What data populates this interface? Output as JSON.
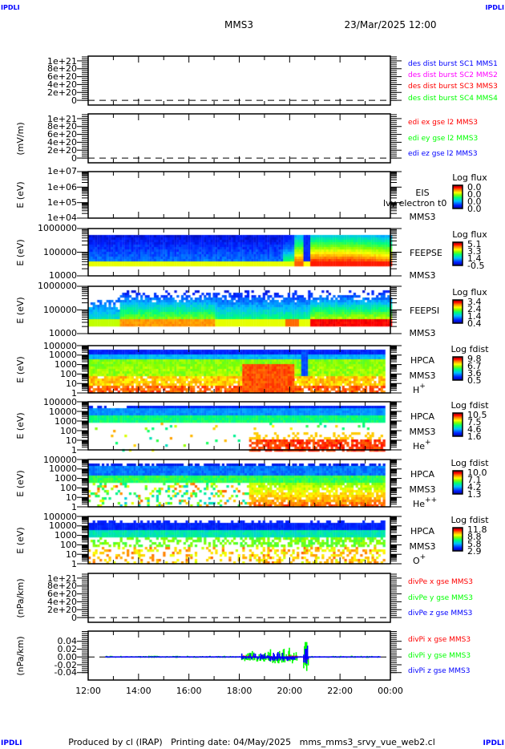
{
  "header": {
    "corner_left": "IPDLI",
    "corner_right": "IPDLI",
    "spacecraft": "MMS3",
    "datetime": "23/Mar/2025 12:00"
  },
  "footer": {
    "corner_left": "IPDLI",
    "corner_right": "IPDLI",
    "text": "Produced by cl (IRAP)   Printing date: 04/May/2025   mms_mms3_srvy_vue_web2.cl"
  },
  "colors": {
    "legend_blue": "#0000ff",
    "legend_magenta": "#ff00ff",
    "legend_red": "#ff0000",
    "legend_green": "#00ff00",
    "corner_text": "#0000ff"
  },
  "chart_data": {
    "type": "multi-panel time series / spectrogram",
    "x_axis": {
      "range": [
        "12:00",
        "00:00"
      ],
      "ticks": [
        "12:00",
        "14:00",
        "16:00",
        "18:00",
        "20:00",
        "22:00",
        "00:00"
      ]
    },
    "panels": [
      {
        "id": "des-dist",
        "type": "line",
        "ylabel": "",
        "yscale": "linear",
        "ylim": [
          -1.2e+20,
          1.12e+21
        ],
        "yticks": [
          {
            "v": 1e+21,
            "label": "1e+21"
          },
          {
            "v": 8e+20,
            "label": "8e+20"
          },
          {
            "v": 6e+20,
            "label": "6e+20"
          },
          {
            "v": 4e+20,
            "label": "4e+20"
          },
          {
            "v": 2e+20,
            "label": "2e+20"
          },
          {
            "v": 0,
            "label": "0"
          }
        ],
        "legend": [
          {
            "text": "des dist burst SC1 MMS1",
            "color": "#0000ff"
          },
          {
            "text": "des dist burst SC2 MMS2",
            "color": "#ff00ff"
          },
          {
            "text": "des dist burst SC3 MMS3",
            "color": "#ff0000"
          },
          {
            "text": "des dist burst SC4 MMS4",
            "color": "#00ff00"
          }
        ]
      },
      {
        "id": "edi",
        "type": "line",
        "ylabel": "(mV/m)",
        "yscale": "linear",
        "ylim": [
          -1.2e+20,
          1.12e+21
        ],
        "yticks": [
          {
            "v": 1e+21,
            "label": "1e+21"
          },
          {
            "v": 8e+20,
            "label": "8e+20"
          },
          {
            "v": 6e+20,
            "label": "6e+20"
          },
          {
            "v": 4e+20,
            "label": "4e+20"
          },
          {
            "v": 2e+20,
            "label": "2e+20"
          },
          {
            "v": 0,
            "label": "0"
          }
        ],
        "legend": [
          {
            "text": "edi ex gse l2 MMS3",
            "color": "#ff0000"
          },
          {
            "text": "edi ey gse l2 MMS3",
            "color": "#00ff00"
          },
          {
            "text": "edi ez gse l2 MMS3",
            "color": "#0000ff"
          }
        ]
      },
      {
        "id": "eis",
        "type": "heatmap",
        "ylabel": "E (eV)",
        "yscale": "log",
        "ylim": [
          10000.0,
          10000000.0
        ],
        "yticks": [
          {
            "v": 10000000.0,
            "label": "1e+07"
          },
          {
            "v": 1000000.0,
            "label": "1e+06"
          },
          {
            "v": 100000.0,
            "label": "1e+05"
          },
          {
            "v": 10000.0,
            "label": "1e+04"
          }
        ],
        "labels": [
          "EIS",
          "lvy electron t0",
          "MMS3"
        ],
        "colorbar": {
          "title": "Log flux",
          "ticks": [
            "0.0",
            "0.0",
            "0.0",
            "0.0"
          ]
        }
      },
      {
        "id": "feepse",
        "type": "heatmap",
        "ylabel": "E (eV)",
        "yscale": "log",
        "ylim": [
          10000.0,
          1000000.0
        ],
        "yticks": [
          {
            "v": 1000000.0,
            "label": "1000000"
          },
          {
            "v": 100000.0,
            "label": "100000"
          },
          {
            "v": 10000.0,
            "label": "10000"
          }
        ],
        "labels": [
          "FEEPSE",
          "MMS3"
        ],
        "colorbar": {
          "title": "Log flux",
          "ticks": [
            "5.1",
            "3.3",
            "1.4",
            "-0.5"
          ]
        }
      },
      {
        "id": "feepsi",
        "type": "heatmap",
        "ylabel": "E (eV)",
        "yscale": "log",
        "ylim": [
          10000.0,
          1000000.0
        ],
        "yticks": [
          {
            "v": 1000000.0,
            "label": "1000000"
          },
          {
            "v": 100000.0,
            "label": "100000"
          },
          {
            "v": 10000.0,
            "label": "10000"
          }
        ],
        "labels": [
          "FEEPSI",
          "MMS3"
        ],
        "colorbar": {
          "title": "Log flux",
          "ticks": [
            "3.4",
            "2.4",
            "1.4",
            "0.4"
          ]
        }
      },
      {
        "id": "hpca-h",
        "type": "heatmap",
        "ylabel": "E (eV)",
        "yscale": "log",
        "ylim": [
          1,
          100000.0
        ],
        "yticks": [
          {
            "v": 100000.0,
            "label": "100000"
          },
          {
            "v": 10000.0,
            "label": "10000"
          },
          {
            "v": 1000.0,
            "label": "1000"
          },
          {
            "v": 100,
            "label": "100"
          },
          {
            "v": 10,
            "label": "10"
          },
          {
            "v": 1,
            "label": "1"
          }
        ],
        "labels": [
          "HPCA",
          "MMS3"
        ],
        "species": {
          "base": "H",
          "sup": "+"
        },
        "colorbar": {
          "title": "Log fdist",
          "ticks": [
            "9.8",
            "6.7",
            "3.6",
            "0.5"
          ]
        }
      },
      {
        "id": "hpca-he1",
        "type": "heatmap",
        "ylabel": "E (eV)",
        "yscale": "log",
        "ylim": [
          1,
          100000.0
        ],
        "yticks": [
          {
            "v": 100000.0,
            "label": "100000"
          },
          {
            "v": 10000.0,
            "label": "10000"
          },
          {
            "v": 1000.0,
            "label": "1000"
          },
          {
            "v": 100,
            "label": "100"
          },
          {
            "v": 10,
            "label": "10"
          },
          {
            "v": 1,
            "label": "1"
          }
        ],
        "labels": [
          "HPCA",
          "MMS3"
        ],
        "species": {
          "base": "He",
          "sup": "+"
        },
        "colorbar": {
          "title": "Log fdist",
          "ticks": [
            "10.5",
            "7.5",
            "4.6",
            "1.6"
          ]
        }
      },
      {
        "id": "hpca-he2",
        "type": "heatmap",
        "ylabel": "E (eV)",
        "yscale": "log",
        "ylim": [
          1,
          100000.0
        ],
        "yticks": [
          {
            "v": 100000.0,
            "label": "100000"
          },
          {
            "v": 10000.0,
            "label": "10000"
          },
          {
            "v": 1000.0,
            "label": "1000"
          },
          {
            "v": 100,
            "label": "100"
          },
          {
            "v": 10,
            "label": "10"
          },
          {
            "v": 1,
            "label": "1"
          }
        ],
        "labels": [
          "HPCA",
          "MMS3"
        ],
        "species": {
          "base": "He",
          "sup": "++"
        },
        "colorbar": {
          "title": "Log fdist",
          "ticks": [
            "10.0",
            "7.1",
            "4.2",
            "1.3"
          ]
        }
      },
      {
        "id": "hpca-o",
        "type": "heatmap",
        "ylabel": "E (eV)",
        "yscale": "log",
        "ylim": [
          1,
          100000.0
        ],
        "yticks": [
          {
            "v": 100000.0,
            "label": "100000"
          },
          {
            "v": 10000.0,
            "label": "10000"
          },
          {
            "v": 1000.0,
            "label": "1000"
          },
          {
            "v": 100,
            "label": "100"
          },
          {
            "v": 10,
            "label": "10"
          },
          {
            "v": 1,
            "label": "1"
          }
        ],
        "labels": [
          "HPCA",
          "MMS3"
        ],
        "species": {
          "base": "O",
          "sup": "+"
        },
        "colorbar": {
          "title": "Log fdist",
          "ticks": [
            "11.8",
            "8.8",
            "5.8",
            "2.9"
          ]
        }
      },
      {
        "id": "divpe",
        "type": "line",
        "ylabel": "(nPa/km)",
        "yscale": "linear",
        "ylim": [
          -1.2e+20,
          1.12e+21
        ],
        "yticks": [
          {
            "v": 1e+21,
            "label": "1e+21"
          },
          {
            "v": 8e+20,
            "label": "8e+20"
          },
          {
            "v": 6e+20,
            "label": "6e+20"
          },
          {
            "v": 4e+20,
            "label": "4e+20"
          },
          {
            "v": 2e+20,
            "label": "2e+20"
          },
          {
            "v": 0,
            "label": "0"
          }
        ],
        "legend": [
          {
            "text": "divPe x gse MMS3",
            "color": "#ff0000"
          },
          {
            "text": "divPe y gse MMS3",
            "color": "#00ff00"
          },
          {
            "text": "divPe z gse MMS3",
            "color": "#0000ff"
          }
        ]
      },
      {
        "id": "divpi",
        "type": "line",
        "ylabel": "(nPa/km)",
        "yscale": "linear",
        "ylim": [
          -0.059,
          0.066
        ],
        "yticks": [
          {
            "v": 0.04,
            "label": "0.04"
          },
          {
            "v": 0.02,
            "label": "0.02"
          },
          {
            "v": 0,
            "label": "0.00"
          },
          {
            "v": -0.02,
            "label": "-0.02"
          },
          {
            "v": -0.04,
            "label": "-0.04"
          }
        ],
        "legend": [
          {
            "text": "divPi x gse MMS3",
            "color": "#ff0000"
          },
          {
            "text": "divPi y gse MMS3",
            "color": "#00ff00"
          },
          {
            "text": "divPi z gse MMS3",
            "color": "#0000ff"
          }
        ]
      }
    ]
  }
}
